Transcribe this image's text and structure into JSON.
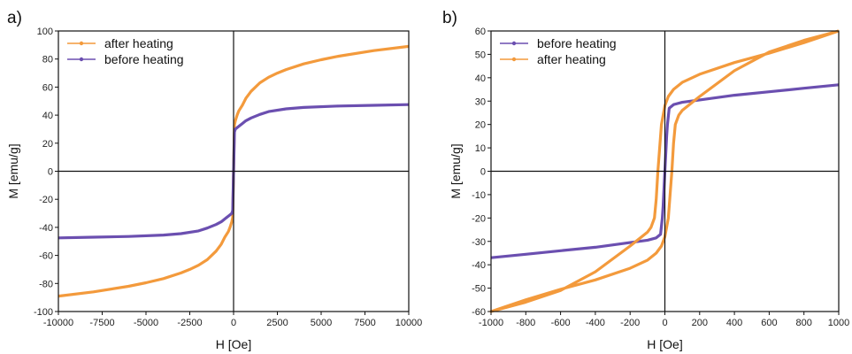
{
  "chart_data": [
    {
      "type": "line",
      "panel_label": "a)",
      "xlabel": "H [Oe]",
      "ylabel": "M [emu/g]",
      "xlim": [
        -10000,
        10000
      ],
      "ylim": [
        -100,
        100
      ],
      "xticks": [
        -10000,
        -7500,
        -5000,
        -2500,
        0,
        2500,
        5000,
        7500,
        10000
      ],
      "yticks": [
        -100,
        -80,
        -60,
        -40,
        -20,
        0,
        20,
        40,
        60,
        80,
        100
      ],
      "legend_position": "top-left",
      "legend_order": [
        "after heating",
        "before heating"
      ],
      "series": [
        {
          "name": "after heating",
          "color": "#f39a3c",
          "x": [
            -10000,
            -8000,
            -6000,
            -5000,
            -4000,
            -3000,
            -2500,
            -2000,
            -1500,
            -1000,
            -700,
            -500,
            -300,
            -200,
            -100,
            -50,
            0,
            50,
            100,
            200,
            300,
            500,
            700,
            1000,
            1500,
            2000,
            2500,
            3000,
            4000,
            5000,
            6000,
            8000,
            10000
          ],
          "y": [
            -89,
            -86,
            -82,
            -79.5,
            -76.5,
            -72.5,
            -70,
            -67,
            -63,
            -57,
            -52,
            -47,
            -43,
            -40,
            -36,
            -33,
            0,
            33,
            36,
            40,
            43,
            47,
            52,
            57,
            63,
            67,
            70,
            72.5,
            76.5,
            79.5,
            82,
            86,
            89
          ]
        },
        {
          "name": "before heating",
          "color": "#6b4fb0",
          "x": [
            -10000,
            -8000,
            -6000,
            -4000,
            -3000,
            -2000,
            -1500,
            -1000,
            -700,
            -500,
            -300,
            -100,
            -50,
            0,
            50,
            100,
            300,
            500,
            700,
            1000,
            1500,
            2000,
            3000,
            4000,
            6000,
            8000,
            10000
          ],
          "y": [
            -47.5,
            -47,
            -46.5,
            -45.5,
            -44.5,
            -42.5,
            -40.5,
            -38,
            -36,
            -34,
            -32,
            -30,
            -28,
            0,
            28,
            30,
            32,
            34,
            36,
            38,
            40.5,
            42.5,
            44.5,
            45.5,
            46.5,
            47,
            47.5
          ]
        }
      ]
    },
    {
      "type": "line",
      "panel_label": "b)",
      "xlabel": "H [Oe]",
      "ylabel": "M [emu/g]",
      "xlim": [
        -1000,
        1000
      ],
      "ylim": [
        -60,
        60
      ],
      "xticks": [
        -1000,
        -800,
        -600,
        -400,
        -200,
        0,
        200,
        400,
        600,
        800,
        1000
      ],
      "yticks": [
        -60,
        -50,
        -40,
        -30,
        -20,
        -10,
        0,
        10,
        20,
        30,
        40,
        50,
        60
      ],
      "legend_position": "top-left",
      "legend_order": [
        "before heating",
        "after heating"
      ],
      "series": [
        {
          "name": "before heating",
          "color": "#6b4fb0",
          "x": [
            -1000,
            -800,
            -600,
            -400,
            -200,
            -100,
            -50,
            -25,
            -15,
            -10,
            0,
            10,
            15,
            25,
            50,
            100,
            200,
            400,
            600,
            800,
            1000
          ],
          "y": [
            -37,
            -35.5,
            -34,
            -32.5,
            -30.5,
            -29.5,
            -28.5,
            -27,
            -20,
            -15,
            0,
            15,
            20,
            27,
            28.5,
            29.5,
            30.5,
            32.5,
            34,
            35.5,
            37
          ]
        },
        {
          "name": "after heating",
          "color": "#f39a3c",
          "x": [
            1000,
            800,
            600,
            400,
            200,
            100,
            50,
            20,
            0,
            -20,
            -30,
            -40,
            -50,
            -60,
            -80,
            -100,
            -200,
            -400,
            -600,
            -800,
            -1000,
            -800,
            -600,
            -400,
            -200,
            -100,
            -50,
            -20,
            0,
            20,
            30,
            40,
            50,
            60,
            80,
            100,
            200,
            400,
            600,
            800,
            1000
          ],
          "y": [
            60,
            55,
            50.5,
            46.5,
            41.5,
            38,
            35,
            32,
            28,
            20,
            10,
            0,
            -12,
            -20,
            -24,
            -26,
            -32,
            -43,
            -51,
            -56,
            -60,
            -55,
            -50.5,
            -46.5,
            -41.5,
            -38,
            -35,
            -32,
            -28,
            -20,
            -10,
            0,
            12,
            20,
            24,
            26,
            32,
            43,
            51,
            56,
            60
          ]
        }
      ]
    }
  ]
}
